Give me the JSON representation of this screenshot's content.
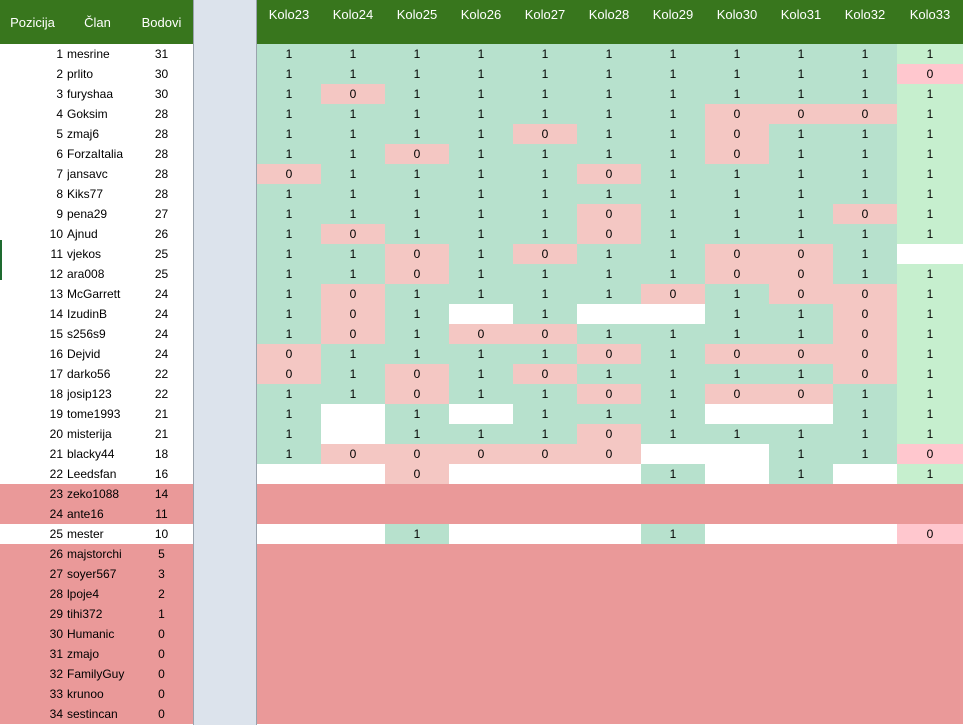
{
  "header": {
    "pozicija": "Pozicija",
    "clan": "Član",
    "bodovi": "Bodovi",
    "rounds": [
      {
        "word": "Kolo",
        "num": "23"
      },
      {
        "word": "Kolo",
        "num": "24"
      },
      {
        "word": "Kolo",
        "num": "25"
      },
      {
        "word": "Kolo",
        "num": "26"
      },
      {
        "word": "Kolo",
        "num": "27"
      },
      {
        "word": "Kolo",
        "num": "28"
      },
      {
        "word": "Kolo",
        "num": "29"
      },
      {
        "word": "Kolo",
        "num": "30"
      },
      {
        "word": "Kolo",
        "num": "31"
      },
      {
        "word": "Kolo",
        "num": "32"
      },
      {
        "word": "Kolo",
        "num": "33"
      }
    ]
  },
  "colors": {
    "header_green": "#38761d",
    "correct": "#b7e1cd",
    "wrong": "#f4c7c3",
    "relegation_row": "#ea9999",
    "round33_correct": "#c6efce",
    "round33_wrong": "#ffc7ce"
  },
  "rows": [
    {
      "pos": "1",
      "name": "mesrine",
      "pts": "31",
      "res": [
        "1",
        "1",
        "1",
        "1",
        "1",
        "1",
        "1",
        "1",
        "1",
        "1",
        "1"
      ]
    },
    {
      "pos": "2",
      "name": "prlito",
      "pts": "30",
      "res": [
        "1",
        "1",
        "1",
        "1",
        "1",
        "1",
        "1",
        "1",
        "1",
        "1",
        "0"
      ]
    },
    {
      "pos": "3",
      "name": "furyshaa",
      "pts": "30",
      "res": [
        "1",
        "0",
        "1",
        "1",
        "1",
        "1",
        "1",
        "1",
        "1",
        "1",
        "1"
      ]
    },
    {
      "pos": "4",
      "name": "Goksim",
      "pts": "28",
      "res": [
        "1",
        "1",
        "1",
        "1",
        "1",
        "1",
        "1",
        "0",
        "0",
        "0",
        "1"
      ]
    },
    {
      "pos": "5",
      "name": "zmaj6",
      "pts": "28",
      "res": [
        "1",
        "1",
        "1",
        "1",
        "0",
        "1",
        "1",
        "0",
        "1",
        "1",
        "1"
      ]
    },
    {
      "pos": "6",
      "name": "ForzaItalia",
      "pts": "28",
      "res": [
        "1",
        "1",
        "0",
        "1",
        "1",
        "1",
        "1",
        "0",
        "1",
        "1",
        "1"
      ]
    },
    {
      "pos": "7",
      "name": "jansavc",
      "pts": "28",
      "res": [
        "0",
        "1",
        "1",
        "1",
        "1",
        "0",
        "1",
        "1",
        "1",
        "1",
        "1"
      ]
    },
    {
      "pos": "8",
      "name": "Kiks77",
      "pts": "28",
      "res": [
        "1",
        "1",
        "1",
        "1",
        "1",
        "1",
        "1",
        "1",
        "1",
        "1",
        "1"
      ]
    },
    {
      "pos": "9",
      "name": "pena29",
      "pts": "27",
      "res": [
        "1",
        "1",
        "1",
        "1",
        "1",
        "0",
        "1",
        "1",
        "1",
        "0",
        "1"
      ]
    },
    {
      "pos": "10",
      "name": "Ajnud",
      "pts": "26",
      "res": [
        "1",
        "0",
        "1",
        "1",
        "1",
        "0",
        "1",
        "1",
        "1",
        "1",
        "1"
      ]
    },
    {
      "pos": "11",
      "name": "vjekos",
      "pts": "25",
      "res": [
        "1",
        "1",
        "0",
        "1",
        "0",
        "1",
        "1",
        "0",
        "0",
        "1",
        ""
      ]
    },
    {
      "pos": "12",
      "name": "ara008",
      "pts": "25",
      "res": [
        "1",
        "1",
        "0",
        "1",
        "1",
        "1",
        "1",
        "0",
        "0",
        "1",
        "1"
      ]
    },
    {
      "pos": "13",
      "name": "McGarrett",
      "pts": "24",
      "res": [
        "1",
        "0",
        "1",
        "1",
        "1",
        "1",
        "0",
        "1",
        "0",
        "0",
        "1"
      ]
    },
    {
      "pos": "14",
      "name": "IzudinB",
      "pts": "24",
      "res": [
        "1",
        "0",
        "1",
        "",
        "1",
        "",
        "",
        "1",
        "1",
        "0",
        "1"
      ]
    },
    {
      "pos": "15",
      "name": "s256s9",
      "pts": "24",
      "res": [
        "1",
        "0",
        "1",
        "0",
        "0",
        "1",
        "1",
        "1",
        "1",
        "0",
        "1"
      ]
    },
    {
      "pos": "16",
      "name": "Dejvid",
      "pts": "24",
      "res": [
        "0",
        "1",
        "1",
        "1",
        "1",
        "0",
        "1",
        "0",
        "0",
        "0",
        "1"
      ]
    },
    {
      "pos": "17",
      "name": "darko56",
      "pts": "22",
      "res": [
        "0",
        "1",
        "0",
        "1",
        "0",
        "1",
        "1",
        "1",
        "1",
        "0",
        "1"
      ]
    },
    {
      "pos": "18",
      "name": "josip123",
      "pts": "22",
      "res": [
        "1",
        "1",
        "0",
        "1",
        "1",
        "0",
        "1",
        "0",
        "0",
        "1",
        "1"
      ]
    },
    {
      "pos": "19",
      "name": "tome1993",
      "pts": "21",
      "res": [
        "1",
        "",
        "1",
        "",
        "1",
        "1",
        "1",
        "",
        "",
        "1",
        "1"
      ]
    },
    {
      "pos": "20",
      "name": "misterija",
      "pts": "21",
      "res": [
        "1",
        "",
        "1",
        "1",
        "1",
        "0",
        "1",
        "1",
        "1",
        "1",
        "1"
      ]
    },
    {
      "pos": "21",
      "name": "blacky44",
      "pts": "18",
      "res": [
        "1",
        "0",
        "0",
        "0",
        "0",
        "0",
        "",
        "",
        "1",
        "1",
        "0"
      ]
    },
    {
      "pos": "22",
      "name": "Leedsfan",
      "pts": "16",
      "res": [
        "",
        "",
        "0",
        "",
        "",
        "",
        "1",
        "",
        "1",
        "",
        "1"
      ]
    },
    {
      "pos": "23",
      "name": "zeko1088",
      "pts": "14",
      "res": []
    },
    {
      "pos": "24",
      "name": "ante16",
      "pts": "11",
      "res": []
    },
    {
      "pos": "25",
      "name": "mester",
      "pts": "10",
      "res": [
        "",
        "",
        "1",
        "",
        "",
        "",
        "1",
        "",
        "",
        "",
        "0"
      ]
    },
    {
      "pos": "26",
      "name": "majstorchi",
      "pts": "5",
      "res": []
    },
    {
      "pos": "27",
      "name": "soyer567",
      "pts": "3",
      "res": []
    },
    {
      "pos": "28",
      "name": "lpoje4",
      "pts": "2",
      "res": []
    },
    {
      "pos": "29",
      "name": "tihi372",
      "pts": "1",
      "res": []
    },
    {
      "pos": "30",
      "name": "Humanic",
      "pts": "0",
      "res": []
    },
    {
      "pos": "31",
      "name": "zmajo",
      "pts": "0",
      "res": []
    },
    {
      "pos": "32",
      "name": "FamilyGuy",
      "pts": "0",
      "res": []
    },
    {
      "pos": "33",
      "name": "krunoo",
      "pts": "0",
      "res": []
    },
    {
      "pos": "34",
      "name": "sestincan",
      "pts": "0",
      "res": []
    }
  ]
}
